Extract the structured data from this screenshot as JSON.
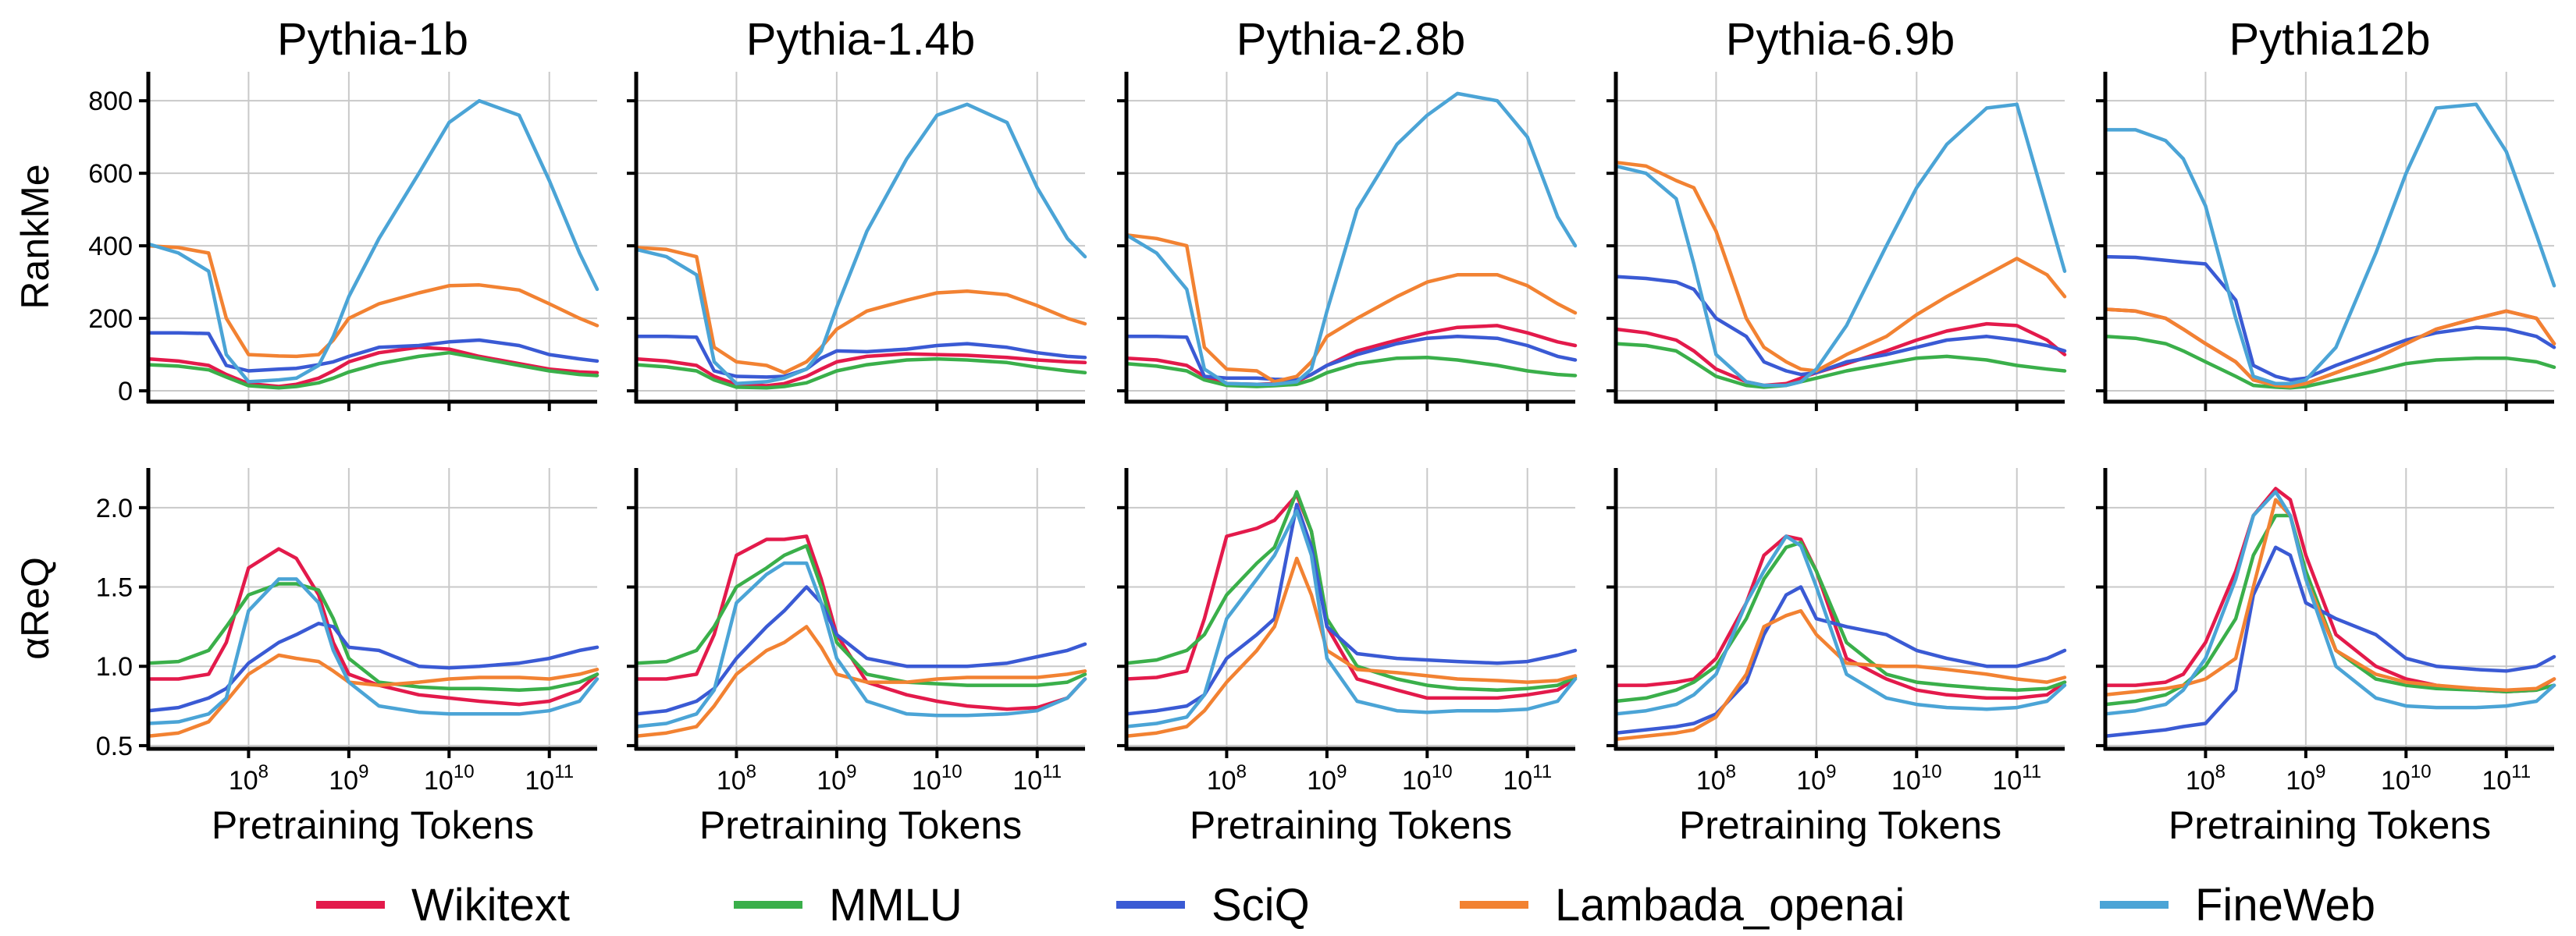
{
  "chart_data": {
    "type": "line",
    "panel_titles": [
      "Pythia-1b",
      "Pythia-1.4b",
      "Pythia-2.8b",
      "Pythia-6.9b",
      "Pythia12b"
    ],
    "xlabel": "Pretraining Tokens",
    "x_scale": "log",
    "xlim": [
      10000000,
      300000000000
    ],
    "x_ticks": [
      {
        "value": 100000000,
        "base": "10",
        "exp": "8"
      },
      {
        "value": 1000000000,
        "base": "10",
        "exp": "9"
      },
      {
        "value": 10000000000,
        "base": "10",
        "exp": "10"
      },
      {
        "value": 100000000000,
        "base": "10",
        "exp": "11"
      }
    ],
    "rows": [
      {
        "ylabel": "RankMe",
        "ylim": [
          -30,
          880
        ],
        "yticks": [
          0,
          200,
          400,
          600,
          800
        ]
      },
      {
        "ylabel": "αReQ",
        "ylim": [
          0.48,
          2.25
        ],
        "yticks": [
          0.5,
          1.0,
          1.5,
          2.0
        ],
        "tick_decimals": 1
      }
    ],
    "grid": true,
    "legend_position": "bottom",
    "series_names": [
      "Wikitext",
      "MMLU",
      "SciQ",
      "Lambada_openai",
      "FineWeb"
    ],
    "colors": [
      "#e31a4b",
      "#3aaf4a",
      "#3a5ad4",
      "#f28232",
      "#4ba4d6"
    ],
    "x": [
      10000000,
      20000000,
      40000000,
      60000000,
      100000000,
      200000000,
      300000000,
      500000000,
      700000000,
      1000000000,
      2000000000,
      5000000000,
      10000000000,
      20000000000,
      50000000000,
      100000000000,
      200000000000,
      300000000000
    ],
    "panels": [
      {
        "rankme": [
          [
            88,
            82,
            70,
            45,
            20,
            12,
            18,
            35,
            55,
            80,
            105,
            120,
            115,
            95,
            75,
            60,
            52,
            50
          ],
          [
            72,
            68,
            58,
            38,
            14,
            8,
            12,
            22,
            35,
            52,
            75,
            95,
            105,
            90,
            70,
            55,
            45,
            42
          ],
          [
            160,
            160,
            158,
            70,
            55,
            60,
            62,
            72,
            80,
            95,
            120,
            125,
            135,
            140,
            125,
            100,
            88,
            82
          ],
          [
            400,
            395,
            380,
            200,
            100,
            96,
            95,
            100,
            140,
            200,
            240,
            270,
            290,
            292,
            278,
            240,
            200,
            180
          ],
          [
            405,
            380,
            330,
            100,
            25,
            30,
            35,
            70,
            150,
            260,
            420,
            600,
            740,
            800,
            760,
            580,
            380,
            280
          ]
        ],
        "alphareq": [
          [
            0.92,
            0.92,
            0.95,
            1.15,
            1.62,
            1.74,
            1.68,
            1.45,
            1.15,
            0.95,
            0.88,
            0.82,
            0.8,
            0.78,
            0.76,
            0.78,
            0.85,
            0.95
          ],
          [
            1.02,
            1.03,
            1.1,
            1.25,
            1.45,
            1.52,
            1.52,
            1.48,
            1.3,
            1.05,
            0.9,
            0.87,
            0.86,
            0.86,
            0.85,
            0.86,
            0.9,
            0.95
          ],
          [
            0.72,
            0.74,
            0.8,
            0.86,
            1.02,
            1.15,
            1.2,
            1.27,
            1.25,
            1.12,
            1.1,
            1.0,
            0.99,
            1.0,
            1.02,
            1.05,
            1.1,
            1.12
          ],
          [
            0.56,
            0.58,
            0.65,
            0.78,
            0.95,
            1.07,
            1.05,
            1.03,
            0.97,
            0.9,
            0.88,
            0.9,
            0.92,
            0.93,
            0.93,
            0.92,
            0.95,
            0.98
          ],
          [
            0.64,
            0.65,
            0.7,
            0.8,
            1.35,
            1.55,
            1.55,
            1.4,
            1.1,
            0.9,
            0.75,
            0.71,
            0.7,
            0.7,
            0.7,
            0.72,
            0.78,
            0.92
          ]
        ]
      },
      {
        "rankme": [
          [
            88,
            82,
            70,
            40,
            18,
            14,
            20,
            40,
            60,
            80,
            95,
            102,
            100,
            98,
            92,
            85,
            80,
            78
          ],
          [
            72,
            66,
            55,
            30,
            10,
            8,
            12,
            22,
            38,
            55,
            72,
            85,
            88,
            85,
            78,
            65,
            55,
            50
          ],
          [
            150,
            150,
            148,
            55,
            40,
            38,
            40,
            60,
            90,
            110,
            108,
            115,
            125,
            130,
            120,
            105,
            95,
            92
          ],
          [
            395,
            390,
            370,
            120,
            80,
            70,
            50,
            80,
            120,
            170,
            220,
            250,
            270,
            275,
            265,
            235,
            200,
            185
          ],
          [
            390,
            370,
            320,
            80,
            20,
            25,
            35,
            60,
            110,
            230,
            440,
            640,
            760,
            790,
            740,
            560,
            420,
            370
          ]
        ],
        "alphareq": [
          [
            0.92,
            0.92,
            0.95,
            1.2,
            1.7,
            1.8,
            1.8,
            1.82,
            1.55,
            1.2,
            0.9,
            0.82,
            0.78,
            0.75,
            0.73,
            0.74,
            0.8,
            0.92
          ],
          [
            1.02,
            1.03,
            1.1,
            1.25,
            1.5,
            1.62,
            1.7,
            1.76,
            1.5,
            1.15,
            0.95,
            0.9,
            0.89,
            0.88,
            0.88,
            0.88,
            0.9,
            0.95
          ],
          [
            0.7,
            0.72,
            0.78,
            0.86,
            1.05,
            1.25,
            1.35,
            1.5,
            1.4,
            1.2,
            1.05,
            1.0,
            1.0,
            1.0,
            1.02,
            1.06,
            1.1,
            1.14
          ],
          [
            0.56,
            0.58,
            0.62,
            0.75,
            0.95,
            1.1,
            1.15,
            1.25,
            1.12,
            0.95,
            0.9,
            0.9,
            0.92,
            0.93,
            0.93,
            0.93,
            0.95,
            0.97
          ],
          [
            0.62,
            0.64,
            0.7,
            0.85,
            1.4,
            1.58,
            1.65,
            1.65,
            1.4,
            1.05,
            0.78,
            0.7,
            0.69,
            0.69,
            0.7,
            0.72,
            0.8,
            0.92
          ]
        ]
      },
      {
        "rankme": [
          [
            90,
            85,
            70,
            40,
            20,
            18,
            20,
            25,
            45,
            70,
            110,
            140,
            160,
            175,
            180,
            160,
            135,
            125
          ],
          [
            75,
            68,
            55,
            30,
            15,
            12,
            14,
            18,
            30,
            50,
            75,
            90,
            92,
            85,
            70,
            55,
            45,
            42
          ],
          [
            150,
            150,
            148,
            40,
            35,
            35,
            32,
            30,
            45,
            70,
            100,
            130,
            145,
            150,
            145,
            125,
            95,
            85
          ],
          [
            430,
            420,
            400,
            120,
            60,
            55,
            25,
            40,
            80,
            150,
            200,
            260,
            300,
            320,
            320,
            290,
            240,
            215
          ],
          [
            430,
            380,
            280,
            60,
            20,
            18,
            18,
            25,
            60,
            220,
            500,
            680,
            760,
            820,
            800,
            700,
            480,
            400
          ]
        ],
        "alphareq": [
          [
            0.92,
            0.93,
            0.97,
            1.3,
            1.82,
            1.87,
            1.92,
            2.08,
            1.85,
            1.25,
            0.92,
            0.85,
            0.8,
            0.8,
            0.8,
            0.82,
            0.85,
            0.92
          ],
          [
            1.02,
            1.04,
            1.1,
            1.2,
            1.45,
            1.65,
            1.75,
            2.1,
            1.85,
            1.3,
            1.0,
            0.92,
            0.88,
            0.86,
            0.85,
            0.86,
            0.88,
            0.93
          ],
          [
            0.7,
            0.72,
            0.75,
            0.82,
            1.05,
            1.2,
            1.3,
            2.02,
            1.75,
            1.25,
            1.08,
            1.05,
            1.04,
            1.03,
            1.02,
            1.03,
            1.07,
            1.1
          ],
          [
            0.56,
            0.58,
            0.62,
            0.72,
            0.9,
            1.1,
            1.25,
            1.68,
            1.45,
            1.1,
            0.98,
            0.96,
            0.94,
            0.92,
            0.91,
            0.9,
            0.91,
            0.94
          ],
          [
            0.62,
            0.64,
            0.68,
            0.82,
            1.3,
            1.55,
            1.7,
            1.98,
            1.7,
            1.05,
            0.78,
            0.72,
            0.71,
            0.72,
            0.72,
            0.73,
            0.78,
            0.92
          ]
        ]
      },
      {
        "rankme": [
          [
            170,
            160,
            140,
            110,
            60,
            25,
            15,
            20,
            35,
            50,
            75,
            110,
            140,
            165,
            185,
            180,
            140,
            100
          ],
          [
            130,
            125,
            110,
            80,
            40,
            15,
            10,
            15,
            25,
            35,
            55,
            75,
            90,
            95,
            85,
            70,
            60,
            55
          ],
          [
            315,
            310,
            300,
            280,
            200,
            150,
            80,
            55,
            45,
            50,
            80,
            100,
            120,
            140,
            150,
            140,
            125,
            110
          ],
          [
            630,
            620,
            580,
            560,
            440,
            200,
            120,
            80,
            60,
            55,
            100,
            150,
            210,
            260,
            320,
            365,
            320,
            260
          ],
          [
            620,
            600,
            530,
            350,
            100,
            25,
            15,
            15,
            25,
            60,
            180,
            400,
            560,
            680,
            780,
            790,
            500,
            330
          ]
        ],
        "alphareq": [
          [
            0.88,
            0.88,
            0.9,
            0.92,
            1.05,
            1.4,
            1.7,
            1.82,
            1.8,
            1.6,
            1.05,
            0.92,
            0.85,
            0.82,
            0.8,
            0.8,
            0.82,
            0.9
          ],
          [
            0.78,
            0.8,
            0.85,
            0.9,
            1.0,
            1.3,
            1.55,
            1.75,
            1.78,
            1.6,
            1.15,
            0.95,
            0.9,
            0.88,
            0.86,
            0.85,
            0.86,
            0.9
          ],
          [
            0.58,
            0.6,
            0.62,
            0.64,
            0.7,
            0.9,
            1.2,
            1.45,
            1.5,
            1.3,
            1.25,
            1.2,
            1.1,
            1.05,
            1.0,
            1.0,
            1.05,
            1.1
          ],
          [
            0.54,
            0.56,
            0.58,
            0.6,
            0.68,
            0.95,
            1.25,
            1.32,
            1.35,
            1.2,
            1.02,
            1.0,
            1.0,
            0.98,
            0.95,
            0.92,
            0.9,
            0.93
          ],
          [
            0.7,
            0.72,
            0.76,
            0.82,
            0.95,
            1.4,
            1.6,
            1.82,
            1.76,
            1.5,
            0.95,
            0.8,
            0.76,
            0.74,
            0.73,
            0.74,
            0.78,
            0.88
          ]
        ]
      },
      {
        "rankme": [
          [
            225,
            220,
            200,
            170,
            130,
            80,
            30,
            15,
            12,
            20,
            50,
            90,
            130,
            170,
            200,
            220,
            200,
            130
          ],
          [
            150,
            145,
            130,
            110,
            80,
            40,
            15,
            10,
            8,
            12,
            30,
            55,
            75,
            85,
            90,
            90,
            80,
            65
          ],
          [
            370,
            368,
            360,
            355,
            350,
            250,
            70,
            40,
            30,
            35,
            70,
            110,
            140,
            160,
            175,
            170,
            150,
            120
          ],
          [
            225,
            220,
            200,
            170,
            130,
            80,
            30,
            15,
            12,
            20,
            50,
            90,
            130,
            170,
            200,
            220,
            200,
            130
          ],
          [
            720,
            720,
            690,
            640,
            510,
            200,
            40,
            20,
            20,
            30,
            120,
            380,
            600,
            780,
            790,
            660,
            430,
            290
          ]
        ],
        "alphareq": [
          [
            0.88,
            0.88,
            0.9,
            0.95,
            1.15,
            1.6,
            1.95,
            2.12,
            2.05,
            1.7,
            1.2,
            1.0,
            0.92,
            0.88,
            0.85,
            0.84,
            0.85,
            0.92
          ],
          [
            0.76,
            0.78,
            0.82,
            0.88,
            1.0,
            1.3,
            1.7,
            1.95,
            1.95,
            1.6,
            1.1,
            0.92,
            0.88,
            0.86,
            0.85,
            0.84,
            0.85,
            0.88
          ],
          [
            0.56,
            0.58,
            0.6,
            0.62,
            0.64,
            0.85,
            1.45,
            1.75,
            1.7,
            1.4,
            1.3,
            1.2,
            1.05,
            1.0,
            0.98,
            0.97,
            1.0,
            1.06
          ],
          [
            0.82,
            0.84,
            0.86,
            0.88,
            0.92,
            1.05,
            1.5,
            2.05,
            1.95,
            1.55,
            1.1,
            0.95,
            0.9,
            0.88,
            0.86,
            0.85,
            0.86,
            0.92
          ],
          [
            0.7,
            0.72,
            0.76,
            0.85,
            1.05,
            1.55,
            1.95,
            2.1,
            1.95,
            1.55,
            1.0,
            0.8,
            0.75,
            0.74,
            0.74,
            0.75,
            0.78,
            0.88
          ]
        ]
      }
    ]
  }
}
